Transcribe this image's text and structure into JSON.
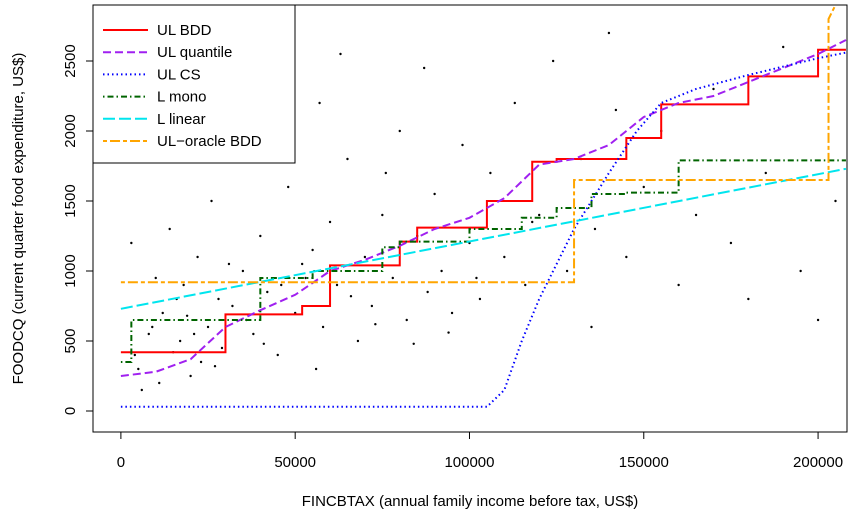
{
  "chart_data": {
    "type": "scatter",
    "x_label": "FINCBTAX (annual family income before tax, US$)",
    "y_label": "FOODCQ (current quarter food expenditure, US$)",
    "xlim": [
      -8000,
      208300
    ],
    "ylim": [
      -150,
      2900
    ],
    "xticks": [
      0,
      50000,
      100000,
      150000,
      200000
    ],
    "yticks": [
      0,
      500,
      1000,
      1500,
      2000,
      2500
    ],
    "legend": "top-left",
    "points": {
      "color": "#000000",
      "x": [
        5000,
        8000,
        12000,
        15000,
        18000,
        20000,
        22000,
        25000,
        28000,
        3000,
        6000,
        10000,
        14000,
        17000,
        19000,
        23000,
        26000,
        29000,
        32000,
        35000,
        38000,
        40000,
        42000,
        45000,
        48000,
        50000,
        53000,
        55000,
        58000,
        60000,
        62000,
        65000,
        68000,
        70000,
        72000,
        75000,
        78000,
        80000,
        82000,
        85000,
        88000,
        90000,
        92000,
        95000,
        98000,
        100000,
        103000,
        106000,
        110000,
        113000,
        116000,
        120000,
        124000,
        128000,
        132000,
        136000,
        140000,
        145000,
        150000,
        155000,
        160000,
        165000,
        170000,
        175000,
        180000,
        185000,
        190000,
        195000,
        200000,
        205000,
        2000,
        7000,
        13000,
        24000,
        33000,
        44000,
        57000,
        63000,
        76000,
        87000,
        4000,
        9000,
        11000,
        16000,
        21000,
        27000,
        31000,
        36000,
        41000,
        46000,
        52000,
        56000,
        66000,
        73000,
        84000,
        94000,
        102000,
        118000,
        135000,
        142000
      ],
      "y": [
        300,
        550,
        700,
        420,
        900,
        250,
        1100,
        600,
        800,
        1200,
        150,
        950,
        1300,
        500,
        680,
        350,
        1500,
        450,
        750,
        1000,
        550,
        1250,
        850,
        400,
        1600,
        700,
        950,
        1150,
        600,
        1350,
        900,
        1800,
        500,
        1100,
        750,
        1400,
        950,
        2000,
        650,
        1250,
        850,
        1550,
        1000,
        700,
        1900,
        1200,
        800,
        1700,
        1100,
        2200,
        900,
        1400,
        2500,
        1000,
        1800,
        1300,
        2700,
        1100,
        1600,
        2000,
        900,
        1400,
        2300,
        1200,
        800,
        1700,
        2600,
        1000,
        650,
        1500,
        2300,
        1800,
        2600,
        2100,
        1900,
        2400,
        2200,
        2550,
        1700,
        2450,
        400,
        600,
        200,
        800,
        550,
        320,
        1050,
        650,
        480,
        900,
        1050,
        300,
        820,
        620,
        480,
        560,
        950,
        1350,
        600,
        2150
      ]
    },
    "series": [
      {
        "name": "UL BDD",
        "color": "#ff0000",
        "linestyle": "solid",
        "x": [
          0,
          30000,
          30000,
          52000,
          52000,
          60000,
          60000,
          80000,
          80000,
          85000,
          85000,
          105000,
          105000,
          118000,
          118000,
          125000,
          125000,
          145000,
          145000,
          155000,
          155000,
          180000,
          180000,
          200000,
          200000,
          208000
        ],
        "y": [
          420,
          420,
          690,
          690,
          750,
          750,
          1040,
          1040,
          1210,
          1210,
          1310,
          1310,
          1500,
          1500,
          1780,
          1780,
          1800,
          1800,
          1950,
          1950,
          2190,
          2190,
          2390,
          2390,
          2580,
          2580
        ]
      },
      {
        "name": "UL quantile",
        "color": "#a020f0",
        "linestyle": "dashed",
        "x": [
          0,
          10000,
          20000,
          30000,
          40000,
          50000,
          60000,
          70000,
          80000,
          90000,
          100000,
          110000,
          120000,
          130000,
          140000,
          150000,
          160000,
          170000,
          180000,
          190000,
          200000,
          208000
        ],
        "y": [
          250,
          280,
          370,
          600,
          720,
          830,
          1000,
          1080,
          1180,
          1300,
          1380,
          1520,
          1760,
          1800,
          1900,
          2100,
          2200,
          2250,
          2350,
          2450,
          2550,
          2650
        ]
      },
      {
        "name": "UL CS",
        "color": "#0000ff",
        "linestyle": "dotted",
        "x": [
          0,
          105000,
          110000,
          115000,
          120000,
          130000,
          140000,
          148000,
          155000,
          165000,
          180000,
          200000,
          208000
        ],
        "y": [
          30,
          30,
          150,
          500,
          800,
          1300,
          1700,
          2000,
          2200,
          2300,
          2400,
          2520,
          2560
        ]
      },
      {
        "name": "L mono",
        "color": "#006400",
        "linestyle": "dotdash",
        "x": [
          0,
          3000,
          3000,
          40000,
          40000,
          55000,
          55000,
          75000,
          75000,
          80000,
          80000,
          100000,
          100000,
          115000,
          115000,
          125000,
          125000,
          135000,
          135000,
          145000,
          145000,
          160000,
          160000,
          208000
        ],
        "y": [
          350,
          350,
          650,
          650,
          950,
          950,
          1000,
          1000,
          1170,
          1170,
          1210,
          1210,
          1300,
          1300,
          1380,
          1380,
          1450,
          1450,
          1550,
          1550,
          1560,
          1560,
          1790,
          1790
        ]
      },
      {
        "name": "L linear",
        "color": "#00e5ee",
        "linestyle": "longdash",
        "x": [
          0,
          208000
        ],
        "y": [
          730,
          1730
        ]
      },
      {
        "name": "UL−oracle BDD",
        "color": "#ffa500",
        "linestyle": "twodash",
        "x": [
          0,
          130000,
          130000,
          203000,
          203000,
          205000
        ],
        "y": [
          920,
          920,
          1650,
          1650,
          2800,
          2900
        ]
      }
    ]
  }
}
